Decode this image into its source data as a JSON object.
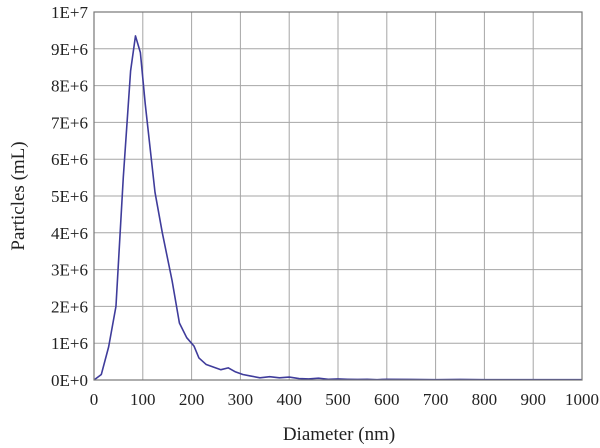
{
  "chart_data": {
    "type": "line",
    "title": "",
    "xlabel": "Diameter (nm)",
    "ylabel": "Particles (mL)",
    "xlim": [
      0,
      1000
    ],
    "ylim": [
      0,
      10000000
    ],
    "x_ticks": [
      0,
      100,
      200,
      300,
      400,
      500,
      600,
      700,
      800,
      900,
      1000
    ],
    "x_tick_labels": [
      "0",
      "100",
      "200",
      "300",
      "400",
      "500",
      "600",
      "700",
      "800",
      "900",
      "1000"
    ],
    "y_ticks": [
      0,
      1000000,
      2000000,
      3000000,
      4000000,
      5000000,
      6000000,
      7000000,
      8000000,
      9000000,
      10000000
    ],
    "y_tick_labels": [
      "0E+0",
      "1E+6",
      "2E+6",
      "3E+6",
      "4E+6",
      "5E+6",
      "6E+6",
      "7E+6",
      "8E+6",
      "9E+6",
      "1E+7"
    ],
    "grid": true,
    "line_color": "#3f3c9b",
    "grid_color": "#a6a6a6",
    "series": [
      {
        "x": [
          0,
          15,
          30,
          45,
          60,
          75,
          85,
          95,
          105,
          115,
          125,
          140,
          160,
          175,
          190,
          205,
          215,
          230,
          245,
          260,
          275,
          290,
          305,
          320,
          340,
          360,
          380,
          400,
          420,
          440,
          460,
          480,
          500,
          520,
          540,
          560,
          580,
          600,
          650,
          700,
          750,
          800,
          850,
          900,
          950,
          1000
        ],
        "y": [
          0,
          150000,
          900000,
          2000000,
          5500000,
          8400000,
          9350000,
          8900000,
          7500000,
          6300000,
          5100000,
          4000000,
          2700000,
          1550000,
          1150000,
          920000,
          600000,
          420000,
          350000,
          280000,
          330000,
          220000,
          150000,
          110000,
          60000,
          90000,
          60000,
          80000,
          40000,
          30000,
          50000,
          20000,
          30000,
          20000,
          15000,
          20000,
          10000,
          20000,
          15000,
          10000,
          15000,
          10000,
          10000,
          8000,
          10000,
          8000
        ]
      }
    ]
  }
}
